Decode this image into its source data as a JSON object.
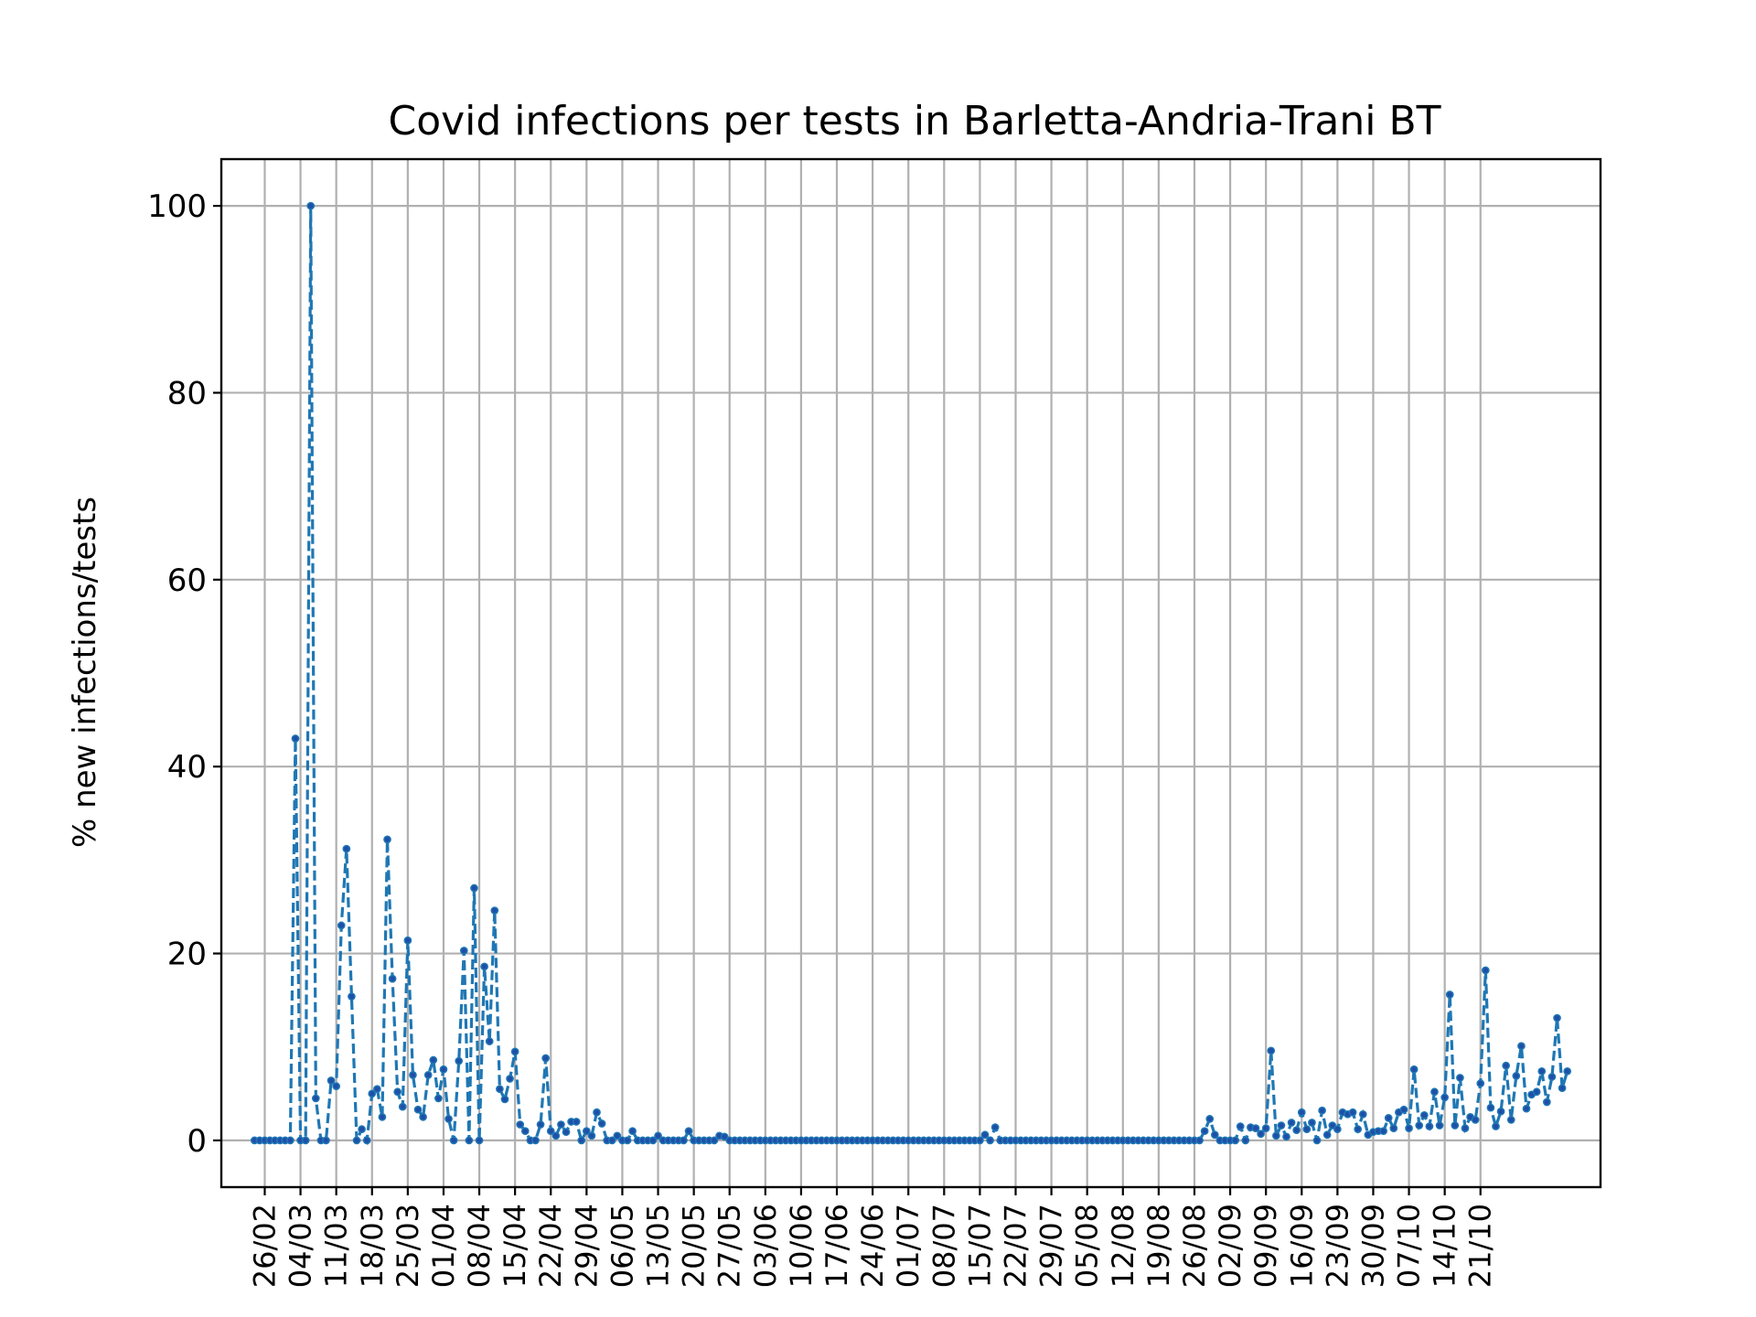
{
  "chart_data": {
    "type": "line",
    "title": "Covid infections per tests in Barletta-Andria-Trani BT",
    "xlabel": "",
    "ylabel": "% new infections/tests",
    "ylim": [
      -5,
      105
    ],
    "yticks": [
      0,
      20,
      40,
      60,
      80,
      100
    ],
    "grid": true,
    "x_tick_labels": [
      "26/02",
      "04/03",
      "11/03",
      "18/03",
      "25/03",
      "01/04",
      "08/04",
      "15/04",
      "22/04",
      "29/04",
      "06/05",
      "13/05",
      "20/05",
      "27/05",
      "03/06",
      "10/06",
      "17/06",
      "24/06",
      "01/07",
      "08/07",
      "15/07",
      "22/07",
      "29/07",
      "05/08",
      "12/08",
      "19/08",
      "26/08",
      "02/09",
      "09/09",
      "16/09",
      "23/09",
      "30/09",
      "07/10",
      "14/10",
      "21/10"
    ],
    "x_start": "24/02",
    "series": [
      {
        "line_color": "#1f77b4",
        "values": [
          0,
          0,
          0,
          0,
          0,
          0,
          0,
          0,
          43,
          0,
          0,
          100,
          4.5,
          0,
          0,
          6.4,
          5.8,
          23,
          31.2,
          15.4,
          0,
          1.2,
          0,
          5,
          5.5,
          2.5,
          32.2,
          17.3,
          5.2,
          3.6,
          21.4,
          7,
          3.3,
          2.5,
          7,
          8.6,
          4.5,
          7.6,
          2.3,
          0,
          8.5,
          20.3,
          0,
          27,
          0,
          18.6,
          10.6,
          24.6,
          5.5,
          4.4,
          6.6,
          9.5,
          1.7,
          1,
          0,
          0,
          1.7,
          8.8,
          1,
          0.5,
          1.7,
          0.9,
          2,
          2,
          0,
          1,
          0.5,
          3,
          1.8,
          0,
          0,
          0.5,
          0,
          0,
          1,
          0,
          0,
          0,
          0,
          0.5,
          0,
          0,
          0,
          0,
          0,
          1,
          0,
          0,
          0,
          0,
          0,
          0.5,
          0.4,
          0,
          0,
          0,
          0,
          0,
          0,
          0,
          0,
          0,
          0,
          0,
          0,
          0,
          0,
          0,
          0,
          0,
          0,
          0,
          0,
          0,
          0,
          0,
          0,
          0,
          0,
          0,
          0,
          0,
          0,
          0,
          0,
          0,
          0,
          0,
          0,
          0,
          0,
          0,
          0,
          0,
          0,
          0,
          0,
          0,
          0,
          0,
          0,
          0,
          0,
          0.6,
          0,
          1.4,
          0,
          0,
          0,
          0,
          0,
          0,
          0,
          0,
          0,
          0,
          0,
          0,
          0,
          0,
          0,
          0,
          0,
          0,
          0,
          0,
          0,
          0,
          0,
          0,
          0,
          0,
          0,
          0,
          0,
          0,
          0,
          0,
          0,
          0,
          0,
          0,
          0,
          0,
          0,
          0,
          1,
          2.3,
          0.6,
          0,
          0,
          0,
          0,
          1.5,
          0,
          1.4,
          1.3,
          0.7,
          1.3,
          9.6,
          0.5,
          1.6,
          0.4,
          1.9,
          1.1,
          3,
          1.2,
          1.9,
          0,
          3.2,
          0.6,
          1.6,
          1.2,
          3,
          2.8,
          3,
          1.2,
          2.8,
          0.6,
          0.9,
          1,
          1,
          2.4,
          1.3,
          3,
          3.3,
          1.3,
          7.6,
          1.6,
          2.7,
          1.5,
          5.2,
          1.6,
          4.6,
          15.6,
          1.6,
          6.7,
          1.3,
          2.5,
          2.2,
          6.1,
          18.2,
          3.5,
          1.5,
          3.1,
          8,
          2.2,
          6.9,
          10.1,
          3.4,
          4.9,
          5.2,
          7.4,
          4.1,
          6.8,
          13.1,
          5.6,
          7.4
        ]
      }
    ]
  }
}
